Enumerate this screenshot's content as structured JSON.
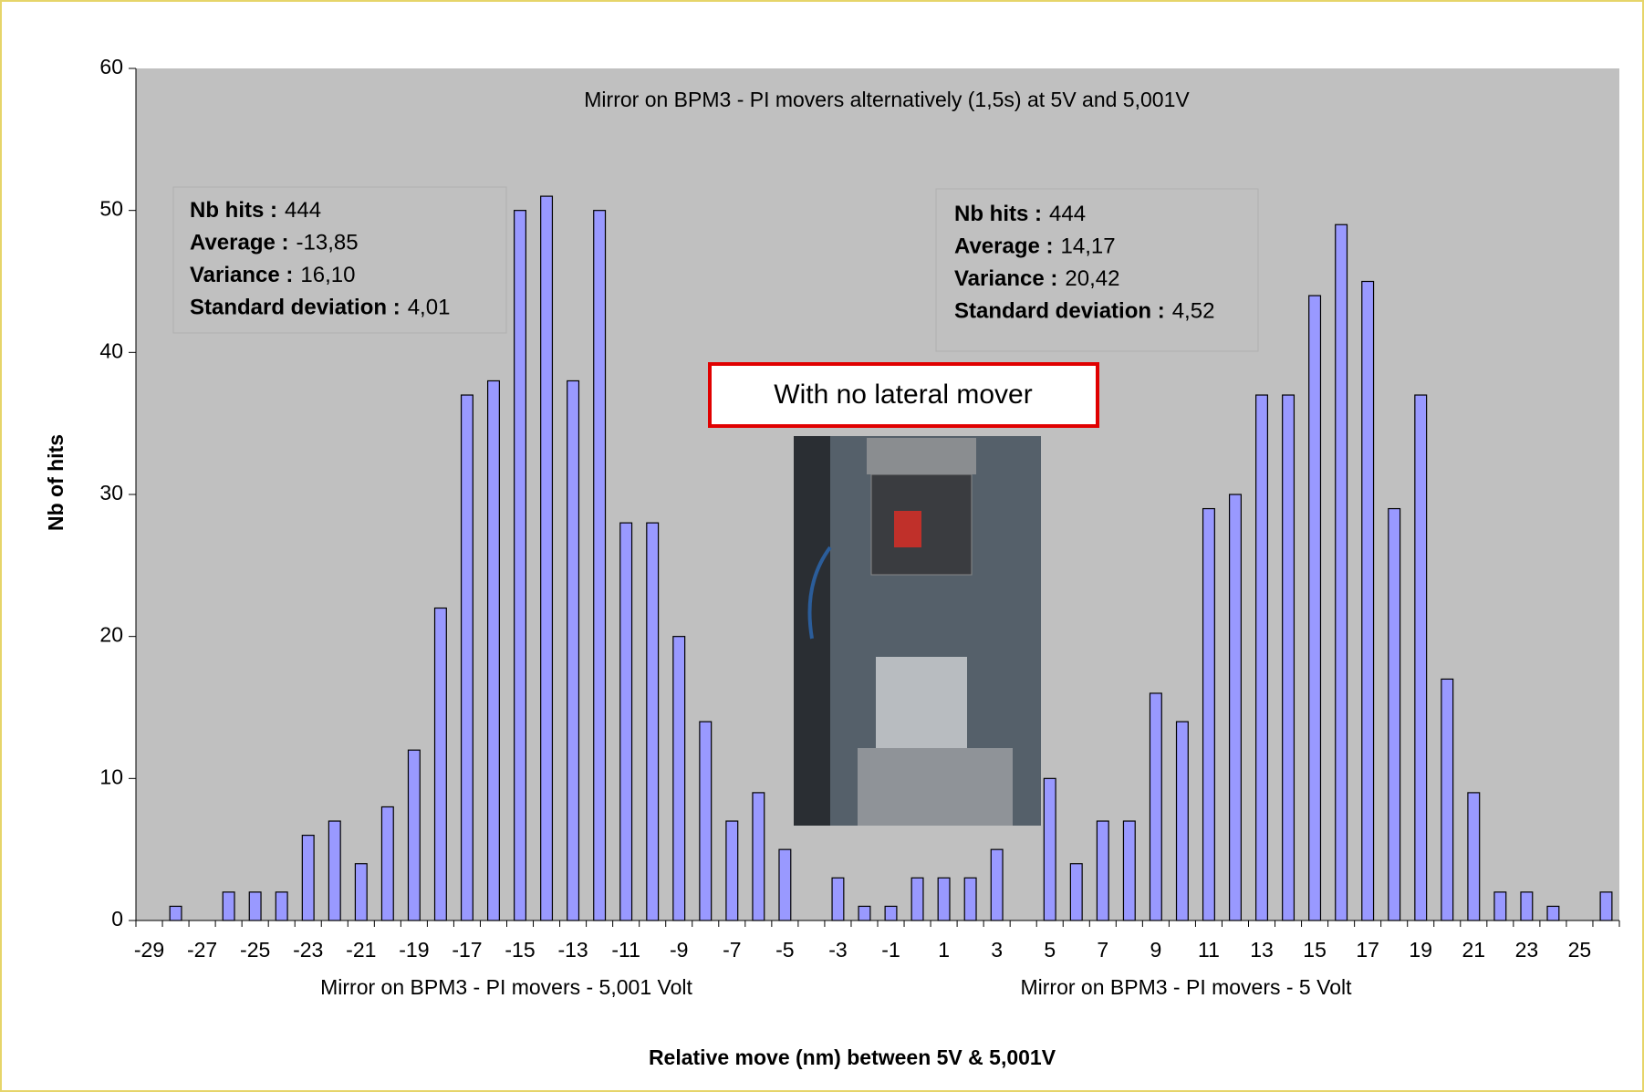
{
  "chart_data": {
    "type": "bar",
    "title": "Mirror on BPM3 - PI movers alternatively (1,5s) at 5V and 5,001V",
    "x_label": "Relative move (nm) between 5V & 5,001V",
    "y_label": "Nb of hits",
    "group_labels": [
      "Mirror on BPM3 - PI movers - 5,001 Volt",
      "Mirror on BPM3 - PI movers - 5 Volt"
    ],
    "callout": "With no lateral mover",
    "stat_boxes": [
      [
        {
          "label": "Nb hits :",
          "value": "444"
        },
        {
          "label": "Average :",
          "value": "-13,85"
        },
        {
          "label": "Variance :",
          "value": "16,10"
        },
        {
          "label": "Standard deviation :",
          "value": "4,01"
        }
      ],
      [
        {
          "label": "Nb hits :",
          "value": "444"
        },
        {
          "label": "Average :",
          "value": "14,17"
        },
        {
          "label": "Variance :",
          "value": "20,42"
        },
        {
          "label": "Standard deviation :",
          "value": "4,52"
        }
      ]
    ],
    "categories": [
      -29,
      null,
      -27,
      null,
      -25,
      null,
      -23,
      null,
      -21,
      null,
      -19,
      null,
      -17,
      null,
      -15,
      null,
      -13,
      null,
      -11,
      null,
      -9,
      null,
      -7,
      null,
      -5,
      null,
      -3,
      null,
      -1,
      null,
      1,
      null,
      3,
      null,
      5,
      null,
      7,
      null,
      9,
      null,
      11,
      null,
      13,
      null,
      15,
      null,
      17,
      null,
      19,
      null,
      21,
      null,
      23,
      null,
      25,
      null
    ],
    "values": [
      0,
      1,
      0,
      2,
      2,
      2,
      6,
      7,
      4,
      8,
      12,
      22,
      37,
      38,
      50,
      51,
      38,
      50,
      28,
      28,
      20,
      14,
      7,
      9,
      5,
      0,
      3,
      1,
      1,
      3,
      3,
      3,
      5,
      0,
      10,
      4,
      7,
      7,
      16,
      14,
      29,
      30,
      37,
      37,
      44,
      49,
      45,
      29,
      37,
      17,
      9,
      2,
      2,
      1,
      0,
      2
    ],
    "color": "#9999ff",
    "plot_background": "#c0c0c0",
    "ylim": [
      0,
      60
    ],
    "yticks": [
      0,
      10,
      20,
      30,
      40,
      50,
      60
    ],
    "grid": false
  }
}
